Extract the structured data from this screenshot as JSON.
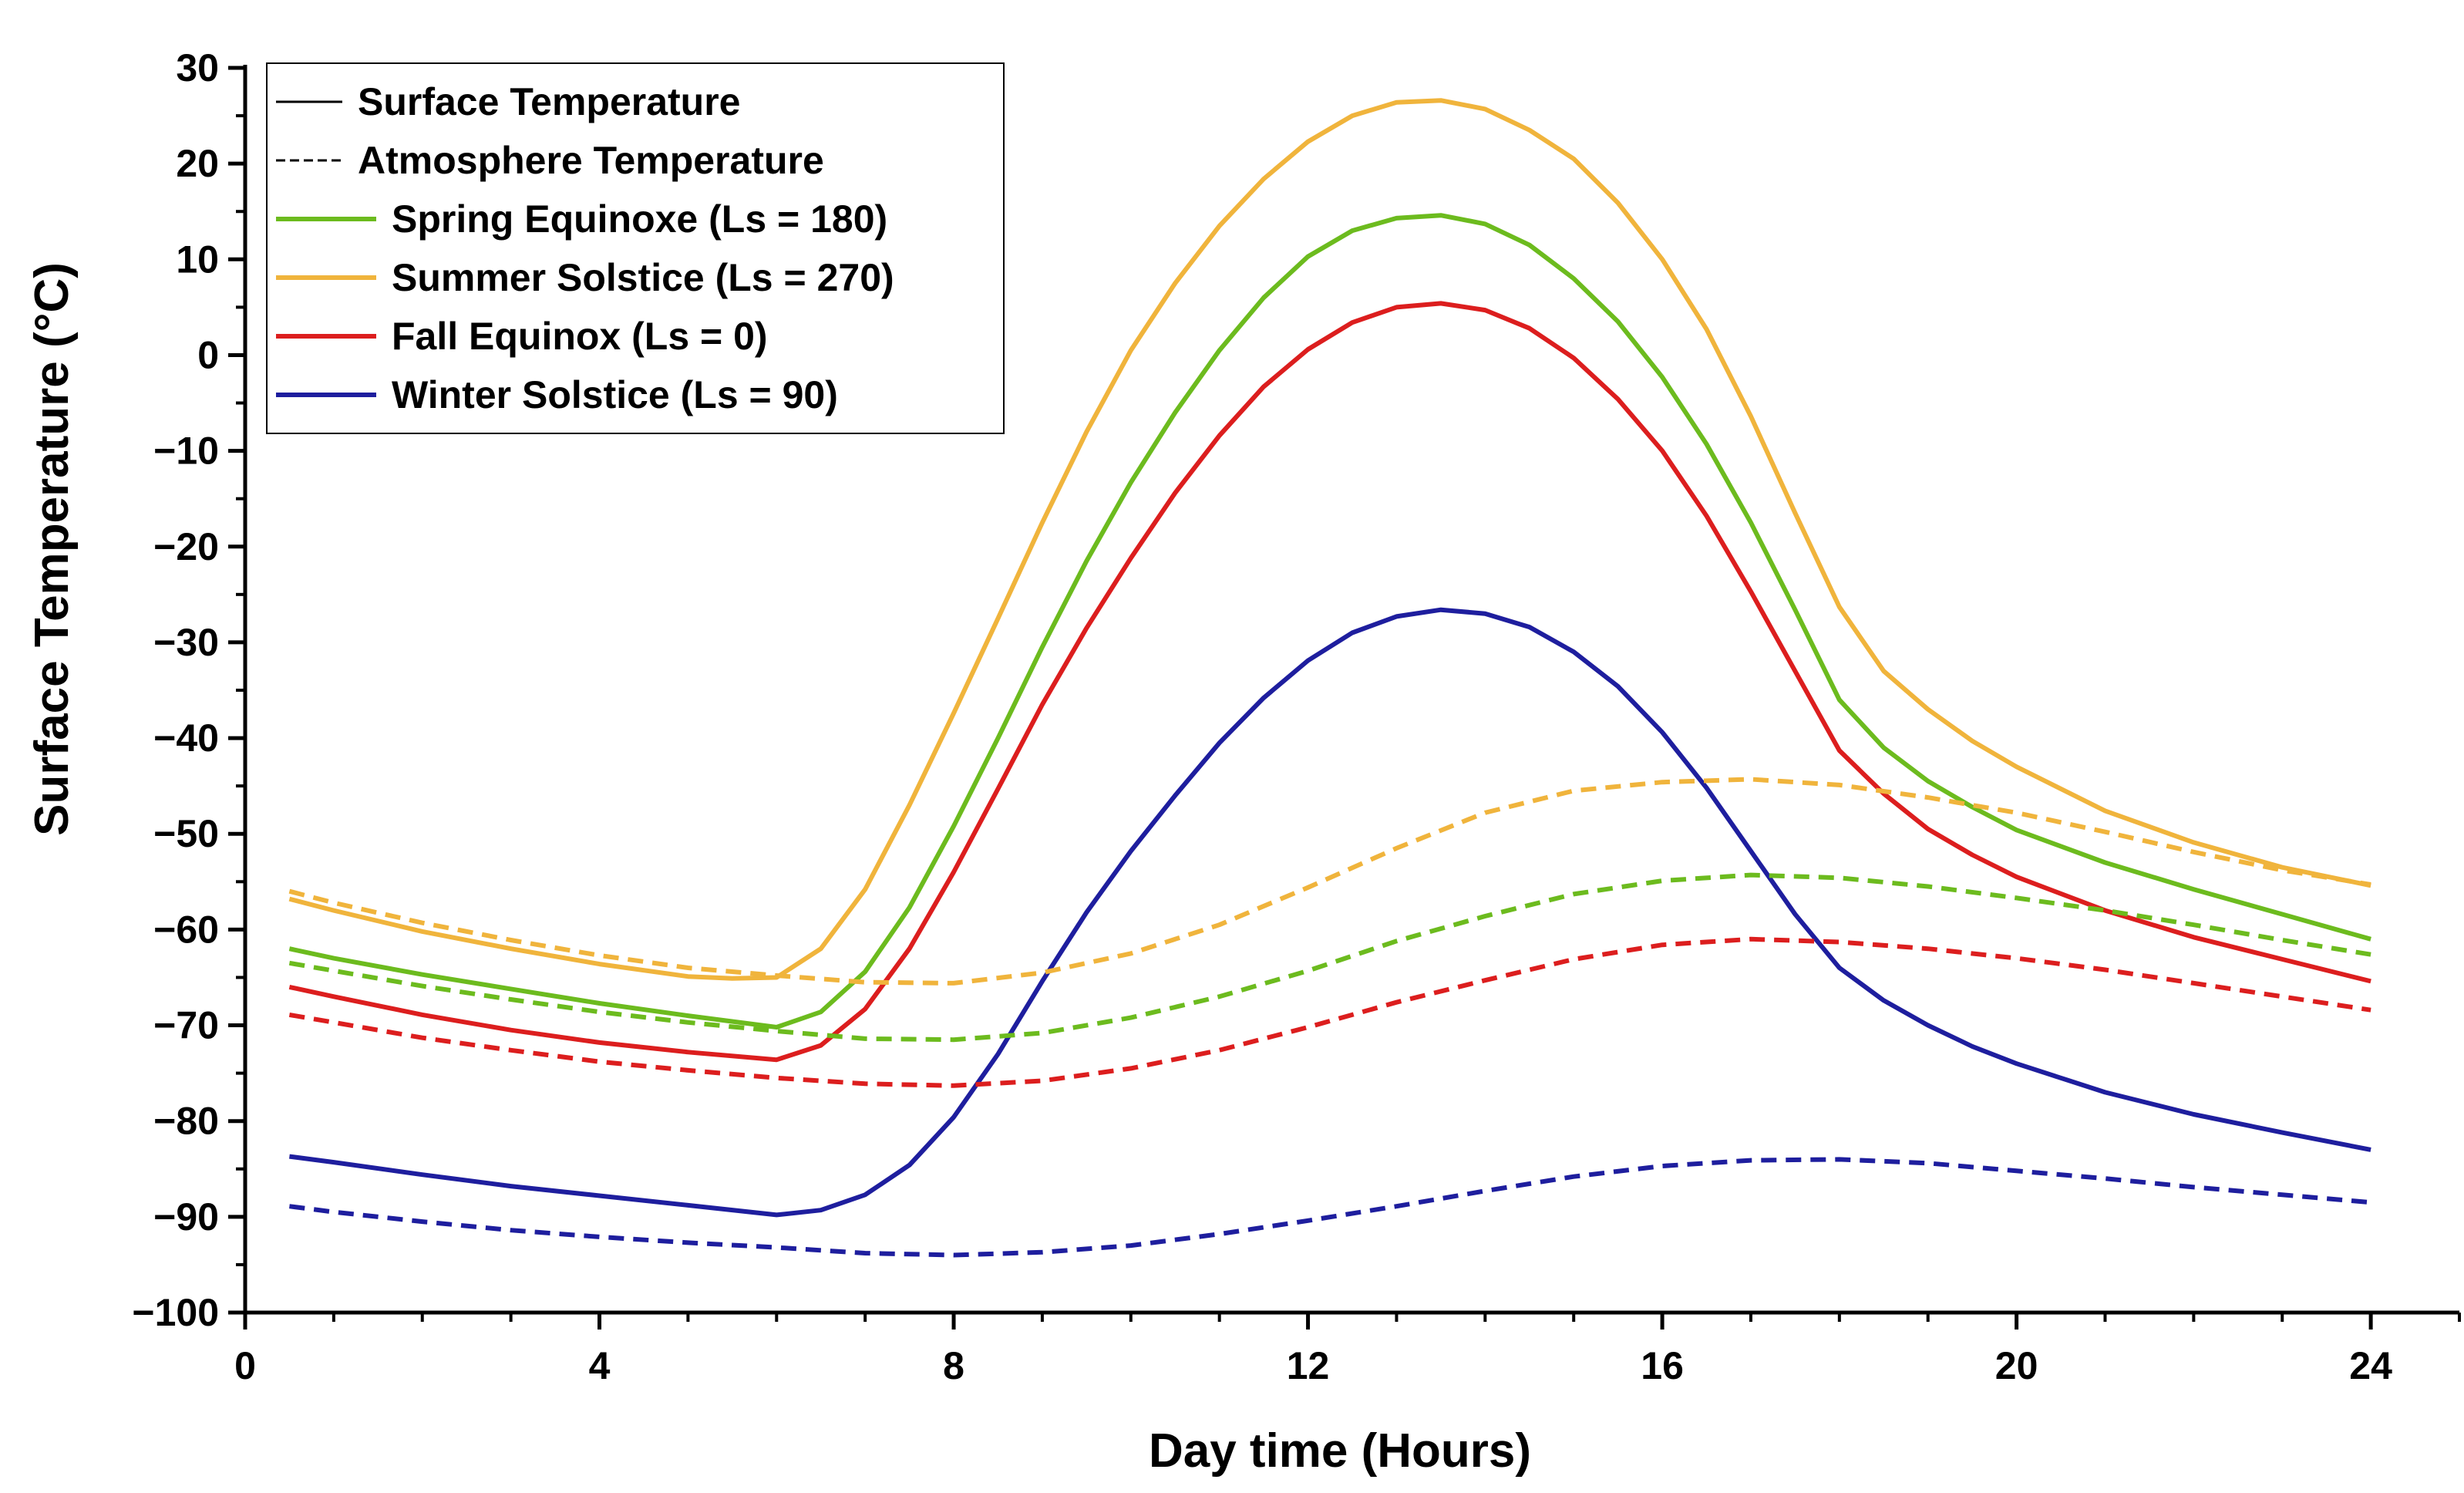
{
  "chart_data": {
    "type": "line",
    "title": "",
    "xlabel": "Day time (Hours)",
    "ylabel": "Surface Temperature (°C)",
    "xlim": [
      0,
      25
    ],
    "ylim": [
      -100,
      30
    ],
    "xticks": [
      0,
      4,
      8,
      12,
      16,
      20,
      24
    ],
    "xtick_labels": [
      "0",
      "4",
      "8",
      "12",
      "16",
      "20",
      "24"
    ],
    "yticks": [
      30,
      20,
      10,
      0,
      -10,
      -20,
      -30,
      -40,
      -50,
      -60,
      -70,
      -80,
      -90,
      -100
    ],
    "ytick_labels": [
      "30",
      "20",
      "10",
      "0",
      "−10",
      "−20",
      "−30",
      "−40",
      "−50",
      "−60",
      "−70",
      "−80",
      "−90",
      "−100"
    ],
    "grid": false,
    "legend_position": "top-left",
    "legend": [
      {
        "label": "Surface Temperature",
        "color": "#000000",
        "style": "solid"
      },
      {
        "label": "Atmosphere Temperature",
        "color": "#000000",
        "style": "dashed"
      },
      {
        "label": "Spring Equinoxe (Ls = 180)",
        "color": "#6CBB1E",
        "style": "solid"
      },
      {
        "label": "Summer Solstice (Ls = 270)",
        "color": "#F0B43C",
        "style": "solid"
      },
      {
        "label": "Fall Equinox (Ls = 0)",
        "color": "#DC1E1E",
        "style": "solid"
      },
      {
        "label": "Winter Solstice (Ls = 90)",
        "color": "#1E1E9E",
        "style": "solid"
      }
    ],
    "series": [
      {
        "name": "Summer Solstice (Ls = 270) - Surface",
        "season": "summer",
        "kind": "surface",
        "color": "#F0B43C",
        "style": "solid",
        "x": [
          0.5,
          1,
          2,
          3,
          4,
          5,
          5.5,
          6,
          6.5,
          7,
          7.5,
          8,
          8.5,
          9,
          9.5,
          10,
          10.5,
          11,
          11.5,
          12,
          12.5,
          13,
          13.5,
          14,
          14.5,
          15,
          15.5,
          16,
          16.5,
          17,
          17.5,
          18,
          18.5,
          19,
          19.5,
          20,
          21,
          22,
          23,
          24
        ],
        "y": [
          -56.8,
          -58.0,
          -60.2,
          -62.0,
          -63.6,
          -64.9,
          -65.1,
          -65.0,
          -62.0,
          -55.8,
          -47.0,
          -37.4,
          -27.5,
          -17.5,
          -8.0,
          0.5,
          7.5,
          13.5,
          18.4,
          22.3,
          25.0,
          26.4,
          26.6,
          25.7,
          23.5,
          20.5,
          15.9,
          10.0,
          2.7,
          -6.4,
          -16.5,
          -26.3,
          -33.0,
          -37.0,
          -40.3,
          -43.0,
          -47.6,
          -50.9,
          -53.5,
          -55.4
        ]
      },
      {
        "name": "Spring Equinoxe (Ls = 180) - Surface",
        "season": "spring",
        "kind": "surface",
        "color": "#6CBB1E",
        "style": "solid",
        "x": [
          0.5,
          1,
          2,
          3,
          4,
          5,
          6,
          6.5,
          7,
          7.5,
          8,
          8.5,
          9,
          9.5,
          10,
          10.5,
          11,
          11.5,
          12,
          12.5,
          13,
          13.5,
          14,
          14.5,
          15,
          15.5,
          16,
          16.5,
          17,
          17.5,
          18,
          18.5,
          19,
          19.5,
          20,
          21,
          22,
          23,
          24
        ],
        "y": [
          -62.0,
          -63.0,
          -64.7,
          -66.2,
          -67.7,
          -69.0,
          -70.2,
          -68.6,
          -64.4,
          -57.7,
          -49.2,
          -40.0,
          -30.5,
          -21.5,
          -13.3,
          -6.0,
          0.5,
          6.0,
          10.3,
          13.0,
          14.3,
          14.6,
          13.7,
          11.5,
          8.0,
          3.5,
          -2.3,
          -9.3,
          -17.5,
          -26.6,
          -36.0,
          -41.0,
          -44.5,
          -47.2,
          -49.6,
          -53.0,
          -55.8,
          -58.4,
          -61.0
        ]
      },
      {
        "name": "Fall Equinox (Ls = 0) - Surface",
        "season": "fall",
        "kind": "surface",
        "color": "#DC1E1E",
        "style": "solid",
        "x": [
          0.5,
          1,
          2,
          3,
          4,
          5,
          6,
          6.5,
          7,
          7.5,
          8,
          8.5,
          9,
          9.5,
          10,
          10.5,
          11,
          11.5,
          12,
          12.5,
          13,
          13.5,
          14,
          14.5,
          15,
          15.5,
          16,
          16.5,
          17,
          17.5,
          18,
          18.5,
          19,
          19.5,
          20,
          21,
          22,
          23,
          24
        ],
        "y": [
          -66.0,
          -67.0,
          -68.9,
          -70.5,
          -71.8,
          -72.8,
          -73.6,
          -72.1,
          -68.3,
          -62.0,
          -54.0,
          -45.3,
          -36.5,
          -28.5,
          -21.2,
          -14.4,
          -8.4,
          -3.3,
          0.6,
          3.4,
          5.0,
          5.4,
          4.7,
          2.8,
          -0.3,
          -4.6,
          -10.0,
          -16.8,
          -24.7,
          -33.0,
          -41.3,
          -45.8,
          -49.5,
          -52.2,
          -54.5,
          -58.0,
          -60.8,
          -63.1,
          -65.4
        ]
      },
      {
        "name": "Winter Solstice (Ls = 90) - Surface",
        "season": "winter",
        "kind": "surface",
        "color": "#1E1E9E",
        "style": "solid",
        "x": [
          0.5,
          1,
          2,
          3,
          4,
          5,
          6,
          6.5,
          7,
          7.5,
          8,
          8.5,
          9,
          9.5,
          10,
          10.5,
          11,
          11.5,
          12,
          12.5,
          13,
          13.5,
          14,
          14.5,
          15,
          15.5,
          16,
          16.5,
          17,
          17.5,
          18,
          18.5,
          19,
          19.5,
          20,
          21,
          22,
          23,
          24
        ],
        "y": [
          -83.7,
          -84.3,
          -85.6,
          -86.8,
          -87.8,
          -88.8,
          -89.8,
          -89.3,
          -87.7,
          -84.6,
          -79.6,
          -73.0,
          -65.4,
          -58.2,
          -51.8,
          -46.0,
          -40.5,
          -35.8,
          -31.9,
          -29.0,
          -27.3,
          -26.6,
          -27.0,
          -28.4,
          -31.0,
          -34.6,
          -39.4,
          -45.2,
          -51.8,
          -58.4,
          -64.0,
          -67.4,
          -70.0,
          -72.2,
          -74.0,
          -77.0,
          -79.3,
          -81.2,
          -83.0
        ]
      },
      {
        "name": "Summer Solstice (Ls = 270) - Atmosphere",
        "season": "summer",
        "kind": "atmosphere",
        "color": "#F0B43C",
        "style": "dashed",
        "x": [
          0.5,
          1,
          2,
          3,
          4,
          5,
          6,
          7,
          8,
          9,
          10,
          11,
          12,
          13,
          14,
          15,
          16,
          17,
          18,
          19,
          20,
          21,
          22,
          23,
          24
        ],
        "y": [
          -56.0,
          -57.2,
          -59.3,
          -61.1,
          -62.7,
          -64.0,
          -64.8,
          -65.5,
          -65.6,
          -64.5,
          -62.5,
          -59.5,
          -55.6,
          -51.5,
          -47.8,
          -45.5,
          -44.6,
          -44.3,
          -44.9,
          -46.2,
          -47.8,
          -49.8,
          -51.9,
          -53.8,
          -55.3
        ]
      },
      {
        "name": "Spring Equinoxe (Ls = 180) - Atmosphere",
        "season": "spring",
        "kind": "atmosphere",
        "color": "#6CBB1E",
        "style": "dashed",
        "x": [
          0.5,
          1,
          2,
          3,
          4,
          5,
          6,
          7,
          8,
          9,
          10,
          11,
          12,
          13,
          14,
          15,
          16,
          17,
          18,
          19,
          20,
          21,
          22,
          23,
          24
        ],
        "y": [
          -63.5,
          -64.3,
          -65.9,
          -67.3,
          -68.6,
          -69.7,
          -70.6,
          -71.4,
          -71.5,
          -70.8,
          -69.2,
          -67.0,
          -64.3,
          -61.2,
          -58.6,
          -56.3,
          -54.9,
          -54.3,
          -54.6,
          -55.5,
          -56.7,
          -58.0,
          -59.5,
          -61.1,
          -62.6
        ]
      },
      {
        "name": "Fall Equinox (Ls = 0) - Atmosphere",
        "season": "fall",
        "kind": "atmosphere",
        "color": "#DC1E1E",
        "style": "dashed",
        "x": [
          0.5,
          1,
          2,
          3,
          4,
          5,
          6,
          7,
          8,
          9,
          10,
          11,
          12,
          13,
          14,
          15,
          16,
          17,
          18,
          19,
          20,
          21,
          22,
          23,
          24
        ],
        "y": [
          -68.9,
          -69.7,
          -71.3,
          -72.6,
          -73.8,
          -74.7,
          -75.5,
          -76.1,
          -76.3,
          -75.8,
          -74.5,
          -72.6,
          -70.2,
          -67.6,
          -65.3,
          -63.1,
          -61.6,
          -61.0,
          -61.3,
          -62.0,
          -63.0,
          -64.2,
          -65.6,
          -67.0,
          -68.4
        ]
      },
      {
        "name": "Winter Solstice (Ls = 90) - Atmosphere",
        "season": "winter",
        "kind": "atmosphere",
        "color": "#1E1E9E",
        "style": "dashed",
        "x": [
          0.5,
          1,
          2,
          3,
          4,
          5,
          6,
          7,
          8,
          9,
          10,
          11,
          12,
          13,
          14,
          15,
          16,
          17,
          18,
          19,
          20,
          21,
          22,
          23,
          24
        ],
        "y": [
          -88.9,
          -89.5,
          -90.5,
          -91.4,
          -92.1,
          -92.7,
          -93.2,
          -93.8,
          -94.0,
          -93.7,
          -93.0,
          -91.8,
          -90.4,
          -88.9,
          -87.3,
          -85.8,
          -84.7,
          -84.1,
          -84.0,
          -84.4,
          -85.2,
          -86.0,
          -86.9,
          -87.7,
          -88.5
        ]
      }
    ]
  }
}
